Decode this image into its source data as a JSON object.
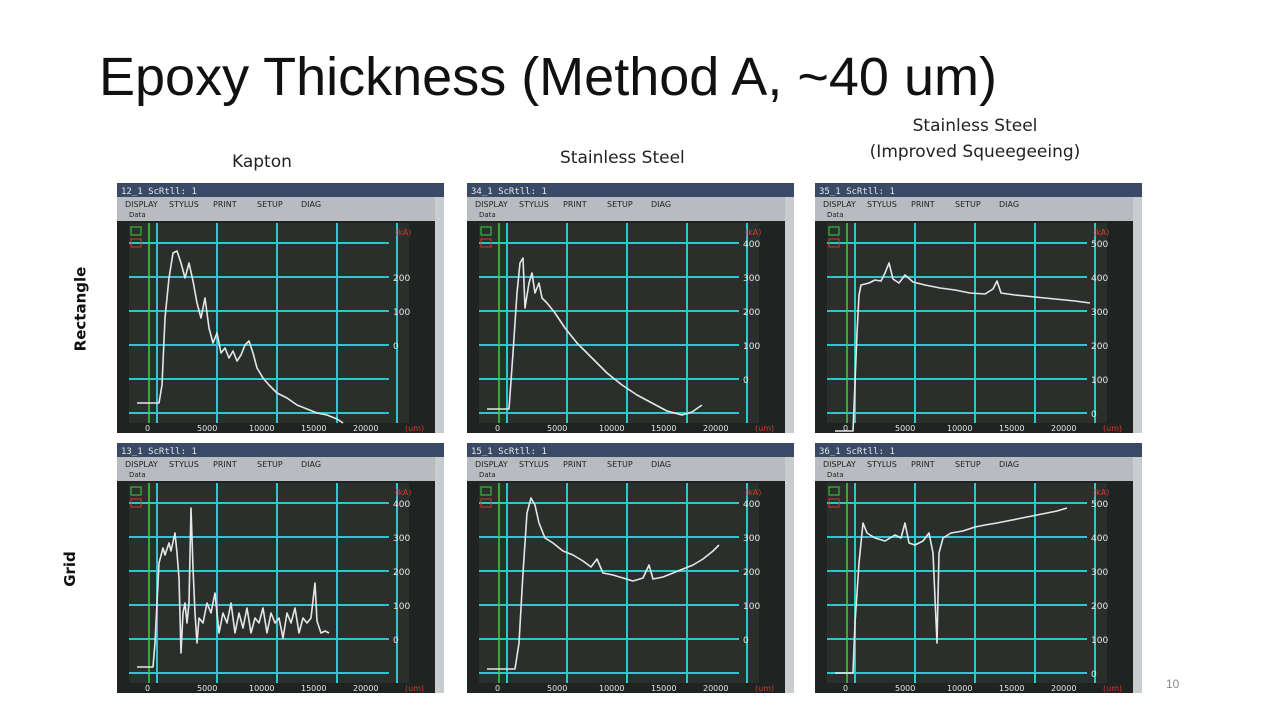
{
  "title": "Epoxy Thickness (Method A, ~40 um)",
  "columns": [
    "Kapton",
    "Stainless Steel",
    "Stainless Steel",
    "(Improved Squeegeeing)"
  ],
  "rows": [
    "Rectangle",
    "Grid"
  ],
  "slide_number": "10",
  "menu": [
    "DISPLAY",
    "STYLUS",
    "PRINT",
    "SETUP",
    "DIAG"
  ],
  "menu_sub": "Data",
  "x_ticks": [
    "0",
    "5000",
    "10000",
    "15000",
    "20000",
    "(um)"
  ],
  "unit_label": "(kA)",
  "panels": [
    {
      "id": "12_1 ScRtll: 1",
      "y_ticks": [
        "",
        "200",
        "100",
        "0"
      ]
    },
    {
      "id": "34_1 ScRtll: 1",
      "y_ticks": [
        "400",
        "300",
        "200",
        "100",
        "0"
      ]
    },
    {
      "id": "35_1 ScRtll: 1",
      "y_ticks": [
        "500",
        "400",
        "300",
        "200",
        "100",
        "0"
      ]
    },
    {
      "id": "13_1 ScRtll: 1",
      "y_ticks": [
        "400",
        "300",
        "200",
        "100",
        "0"
      ]
    },
    {
      "id": "15_1 ScRtll: 1",
      "y_ticks": [
        "400",
        "300",
        "200",
        "100",
        "0"
      ]
    },
    {
      "id": "36_1 ScRtll: 1",
      "y_ticks": [
        "500",
        "400",
        "300",
        "200",
        "100",
        "0"
      ]
    }
  ],
  "colors": {
    "screen": "#2b2f2c",
    "grid": "#2fc7cf",
    "trace": "#e6e6e6",
    "menubar": "#b8bcc0",
    "accent": "#d23a2a",
    "marker": "#3ad23a"
  }
}
